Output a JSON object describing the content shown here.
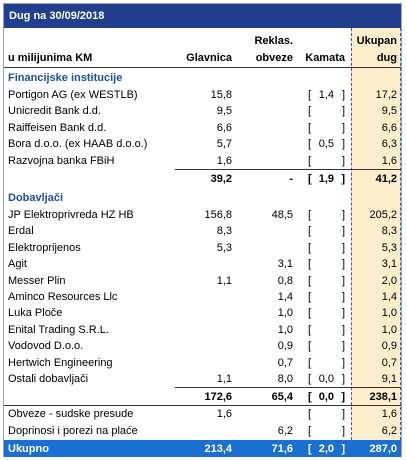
{
  "title": "Dug na 30/09/2018",
  "header": {
    "label": "u milijunima KM",
    "columns": [
      [
        "Glavnica"
      ],
      [
        "Reklas.",
        "obveze"
      ],
      [
        "Kamata"
      ],
      [
        "Ukupan",
        "dug"
      ]
    ]
  },
  "sections": [
    {
      "title": "Financijske institucije",
      "rows": [
        [
          "Portigon AG (ex WESTLB)",
          "15,8",
          null,
          "1,4",
          "17,2"
        ],
        [
          "Unicredit Bank d.d.",
          "9,5",
          null,
          null,
          "9,5"
        ],
        [
          "Raiffeisen Bank d.d.",
          "6,6",
          null,
          null,
          "6,6"
        ],
        [
          "Bora d.o.o. (ex HAAB d.o.o.)",
          "5,7",
          null,
          "0,5",
          "6,3"
        ],
        [
          "Razvojna banka FBiH",
          "1,6",
          null,
          null,
          "1,6"
        ]
      ],
      "subtotal": [
        "39,2",
        "-",
        "1,9",
        "41,2"
      ]
    },
    {
      "title": "Dobavljači",
      "rows": [
        [
          "JP Elektroprivreda HZ HB",
          "156,8",
          "48,5",
          null,
          "205,2"
        ],
        [
          "Erdal",
          "8,3",
          null,
          null,
          "8,3"
        ],
        [
          "Elektroprijenos",
          "5,3",
          null,
          null,
          "5,3"
        ],
        [
          "Agit",
          null,
          "3,1",
          null,
          "3,1"
        ],
        [
          "Messer Plin",
          "1,1",
          "0,8",
          null,
          "2,0"
        ],
        [
          "Aminco Resources Llc",
          null,
          "1,4",
          null,
          "1,4"
        ],
        [
          "Luka Ploče",
          null,
          "1,0",
          null,
          "1,0"
        ],
        [
          "Enital Trading S.R.L.",
          null,
          "1,0",
          null,
          "1,0"
        ],
        [
          "Vodovod D.o.o.",
          null,
          "0,9",
          null,
          "0,9"
        ],
        [
          "Hertwich Engineering",
          null,
          "0,7",
          null,
          "0,7"
        ],
        [
          "Ostali dobavljači",
          "1,1",
          "8,0",
          "0,0",
          "9,1"
        ]
      ],
      "subtotal": [
        "172,6",
        "65,4",
        "0,0",
        "238,1"
      ]
    }
  ],
  "other_rows": [
    [
      "Obveze - sudske presude",
      "1,6",
      null,
      null,
      "1,6"
    ],
    [
      "Doprinosi i porezi na plaće",
      null,
      "6,2",
      null,
      "6,2"
    ]
  ],
  "total": [
    "Ukupno",
    "213,4",
    "71,6",
    "2,0",
    "287,0"
  ]
}
